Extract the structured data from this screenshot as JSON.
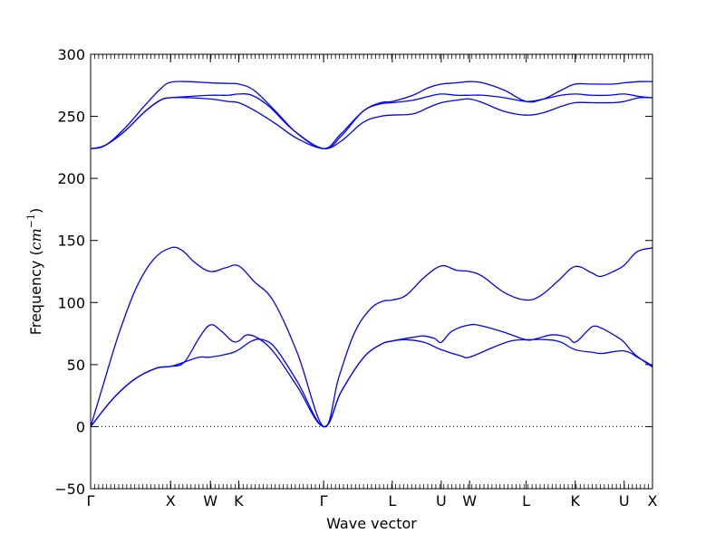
{
  "chart_data": {
    "type": "line",
    "title": "",
    "xlabel": "Wave vector",
    "ylabel": "Frequency (",
    "ylabel_math": "cm",
    "ylabel_exp": "−1",
    "ylabel_close": ")",
    "ylim": [
      -50,
      300
    ],
    "yticks": [
      -50,
      0,
      50,
      100,
      150,
      200,
      250,
      300
    ],
    "xlim": [
      0,
      25.8
    ],
    "xticks": [
      {
        "x": 0,
        "label": "Γ"
      },
      {
        "x": 3.67,
        "label": "X"
      },
      {
        "x": 5.5,
        "label": "W"
      },
      {
        "x": 6.8,
        "label": "K"
      },
      {
        "x": 10.7,
        "label": "Γ"
      },
      {
        "x": 13.85,
        "label": "L"
      },
      {
        "x": 16.1,
        "label": "U"
      },
      {
        "x": 17.4,
        "label": "W"
      },
      {
        "x": 20,
        "label": "L"
      },
      {
        "x": 22.25,
        "label": "K"
      },
      {
        "x": 24.5,
        "label": "U"
      },
      {
        "x": 25.8,
        "label": "X"
      }
    ],
    "zero_line": true,
    "grid": false,
    "line_color": "#0000ff",
    "series": [
      {
        "points": [
          [
            0,
            0
          ],
          [
            1,
            22
          ],
          [
            2,
            38
          ],
          [
            3,
            47
          ],
          [
            3.67,
            48.5
          ],
          [
            4.3,
            52
          ],
          [
            5,
            72
          ],
          [
            5.5,
            82
          ],
          [
            6,
            77
          ],
          [
            6.5,
            69
          ],
          [
            6.8,
            69
          ],
          [
            7.2,
            74
          ],
          [
            7.8,
            70
          ],
          [
            8.5,
            58
          ],
          [
            9.5,
            32
          ],
          [
            10.7,
            0
          ],
          [
            11.5,
            28
          ],
          [
            12.5,
            55
          ],
          [
            13.3,
            66
          ],
          [
            13.85,
            69
          ],
          [
            14.5,
            70
          ],
          [
            15.3,
            68
          ],
          [
            16.1,
            62
          ],
          [
            17,
            57
          ],
          [
            17.4,
            56
          ],
          [
            18.5,
            64
          ],
          [
            19.3,
            69
          ],
          [
            20,
            70
          ],
          [
            21,
            70
          ],
          [
            21.6,
            68
          ],
          [
            22.25,
            62
          ],
          [
            23,
            60
          ],
          [
            23.5,
            59
          ],
          [
            24.5,
            61
          ],
          [
            25.2,
            55
          ],
          [
            25.8,
            49
          ]
        ]
      },
      {
        "points": [
          [
            0,
            0
          ],
          [
            1,
            22
          ],
          [
            2,
            38
          ],
          [
            3,
            47
          ],
          [
            3.67,
            48.5
          ],
          [
            4.3,
            52
          ],
          [
            5,
            56
          ],
          [
            5.5,
            56
          ],
          [
            6.4,
            59
          ],
          [
            6.8,
            62
          ],
          [
            7.4,
            69
          ],
          [
            7.9,
            70
          ],
          [
            8.5,
            63
          ],
          [
            9.5,
            36
          ],
          [
            10.7,
            0
          ],
          [
            11.5,
            28
          ],
          [
            12.5,
            55
          ],
          [
            13.3,
            66
          ],
          [
            13.85,
            69
          ],
          [
            14.8,
            72
          ],
          [
            15.3,
            73
          ],
          [
            15.8,
            71
          ],
          [
            16.1,
            68
          ],
          [
            16.6,
            77
          ],
          [
            17.4,
            82
          ],
          [
            18,
            81
          ],
          [
            19,
            76
          ],
          [
            20,
            70
          ],
          [
            20.5,
            71
          ],
          [
            21.2,
            74
          ],
          [
            21.9,
            72
          ],
          [
            22.25,
            68
          ],
          [
            22.8,
            77
          ],
          [
            23.1,
            81
          ],
          [
            23.5,
            79
          ],
          [
            24.2,
            72
          ],
          [
            24.5,
            68
          ],
          [
            25,
            58
          ],
          [
            25.8,
            48
          ]
        ]
      },
      {
        "points": [
          [
            0,
            0
          ],
          [
            0.6,
            35
          ],
          [
            1.3,
            75
          ],
          [
            2.1,
            112
          ],
          [
            2.9,
            135
          ],
          [
            3.67,
            144
          ],
          [
            4.2,
            142
          ],
          [
            4.8,
            132
          ],
          [
            5.5,
            125
          ],
          [
            6.2,
            128
          ],
          [
            6.8,
            129.5
          ],
          [
            7.5,
            117
          ],
          [
            8.4,
            101
          ],
          [
            9.5,
            59
          ],
          [
            10.7,
            0
          ],
          [
            11.4,
            40
          ],
          [
            12.1,
            75
          ],
          [
            12.8,
            94
          ],
          [
            13.4,
            101
          ],
          [
            13.85,
            102
          ],
          [
            14.5,
            106
          ],
          [
            15.3,
            120
          ],
          [
            16.1,
            129.5
          ],
          [
            16.8,
            126
          ],
          [
            17.4,
            125
          ],
          [
            18,
            121
          ],
          [
            19,
            108
          ],
          [
            20,
            102
          ],
          [
            20.7,
            106
          ],
          [
            21.5,
            118
          ],
          [
            22.25,
            129
          ],
          [
            23,
            124
          ],
          [
            23.4,
            121
          ],
          [
            24,
            125
          ],
          [
            24.5,
            130
          ],
          [
            25.1,
            141
          ],
          [
            25.8,
            144
          ]
        ]
      },
      {
        "points": [
          [
            0,
            224
          ],
          [
            0.6,
            226
          ],
          [
            1.5,
            237
          ],
          [
            2.5,
            254
          ],
          [
            3.2,
            263
          ],
          [
            3.67,
            265
          ],
          [
            4.5,
            265
          ],
          [
            5.5,
            264
          ],
          [
            6.3,
            262
          ],
          [
            6.8,
            261
          ],
          [
            7.5,
            255
          ],
          [
            8.5,
            244
          ],
          [
            9.5,
            232
          ],
          [
            10.7,
            224
          ],
          [
            11.5,
            230
          ],
          [
            12.5,
            245
          ],
          [
            13.3,
            250
          ],
          [
            13.85,
            251
          ],
          [
            14.8,
            252
          ],
          [
            15.5,
            257
          ],
          [
            16.1,
            261
          ],
          [
            16.8,
            263
          ],
          [
            17.4,
            264
          ],
          [
            18,
            261
          ],
          [
            19,
            254
          ],
          [
            20,
            251
          ],
          [
            20.8,
            253
          ],
          [
            21.6,
            258
          ],
          [
            22.25,
            261
          ],
          [
            23,
            261
          ],
          [
            24,
            261
          ],
          [
            24.5,
            262
          ],
          [
            25.2,
            265
          ],
          [
            25.8,
            265
          ]
        ]
      },
      {
        "points": [
          [
            0,
            224
          ],
          [
            0.6,
            226
          ],
          [
            1.5,
            237
          ],
          [
            2.5,
            254
          ],
          [
            3.2,
            263
          ],
          [
            3.67,
            265
          ],
          [
            4.5,
            266
          ],
          [
            5.5,
            267
          ],
          [
            6.3,
            267
          ],
          [
            6.8,
            268
          ],
          [
            7.4,
            267
          ],
          [
            8.2,
            258
          ],
          [
            9.3,
            239
          ],
          [
            10.7,
            224
          ],
          [
            11.5,
            234
          ],
          [
            12.5,
            254
          ],
          [
            13.3,
            260
          ],
          [
            13.85,
            261
          ],
          [
            14.8,
            263
          ],
          [
            15.5,
            266
          ],
          [
            16.1,
            268
          ],
          [
            16.8,
            267
          ],
          [
            17.4,
            267
          ],
          [
            18,
            267
          ],
          [
            19,
            265
          ],
          [
            20,
            262
          ],
          [
            20.8,
            264
          ],
          [
            21.6,
            267
          ],
          [
            22.25,
            268
          ],
          [
            23,
            267
          ],
          [
            23.8,
            267
          ],
          [
            24.5,
            268
          ],
          [
            25.2,
            266
          ],
          [
            25.8,
            265
          ]
        ]
      },
      {
        "points": [
          [
            0,
            224
          ],
          [
            0.7,
            227
          ],
          [
            1.6,
            241
          ],
          [
            2.5,
            259
          ],
          [
            3.2,
            272
          ],
          [
            3.67,
            277.5
          ],
          [
            4.5,
            278
          ],
          [
            5.5,
            277
          ],
          [
            6.4,
            276.5
          ],
          [
            6.8,
            276
          ],
          [
            7.5,
            271
          ],
          [
            8.5,
            254
          ],
          [
            9.5,
            236
          ],
          [
            10.7,
            224
          ],
          [
            11.5,
            236
          ],
          [
            12.5,
            254
          ],
          [
            13.3,
            261
          ],
          [
            13.85,
            262
          ],
          [
            14.8,
            267
          ],
          [
            15.5,
            273
          ],
          [
            16.1,
            276
          ],
          [
            16.8,
            277
          ],
          [
            17.4,
            278
          ],
          [
            18,
            277
          ],
          [
            19,
            271
          ],
          [
            20,
            262
          ],
          [
            20.8,
            264
          ],
          [
            21.6,
            271
          ],
          [
            22.25,
            276
          ],
          [
            23,
            276
          ],
          [
            24,
            276
          ],
          [
            24.5,
            277
          ],
          [
            25.2,
            278
          ],
          [
            25.8,
            278
          ]
        ]
      }
    ]
  }
}
